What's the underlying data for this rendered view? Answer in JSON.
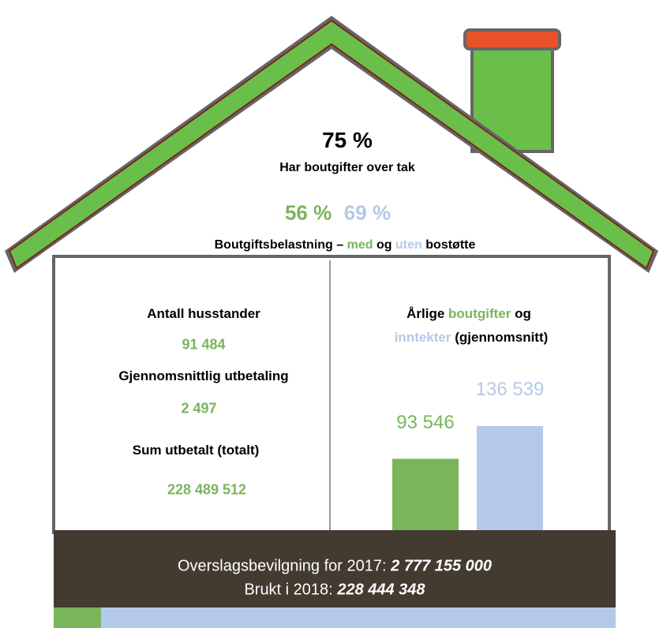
{
  "roof": {
    "headline": "75 %",
    "headline_caption": "Har boutgifter over tak",
    "with_support": "56 %",
    "without_support": "69 %",
    "legend": [
      "Boutgiftsbelastning –",
      "med",
      "og",
      "uten",
      "bostøtte"
    ]
  },
  "left_panel": {
    "rows": [
      {
        "label": "Antall husstander",
        "value": "91 484"
      },
      {
        "label": "Gjennomsnittlig utbetaling",
        "value": "2 497"
      },
      {
        "label": "Sum utbetalt (totalt)",
        "value": "228 489 512"
      }
    ]
  },
  "right_panel": {
    "title_line1": [
      "Årlige",
      "boutgifter",
      "og"
    ],
    "title_line2": [
      "inntekter",
      "(gjennomsnitt)"
    ],
    "bars": {
      "values": [
        93546,
        136539
      ],
      "value_labels": [
        "93 546",
        "136 539"
      ],
      "colors": [
        "#7ab55c",
        "#b4c9e8"
      ]
    }
  },
  "footer": {
    "line1": [
      "Overslagsbevilgning for 2017:",
      "2 777 155 000"
    ],
    "line2": [
      "Brukt i 2018:",
      "228 444 348"
    ]
  }
}
